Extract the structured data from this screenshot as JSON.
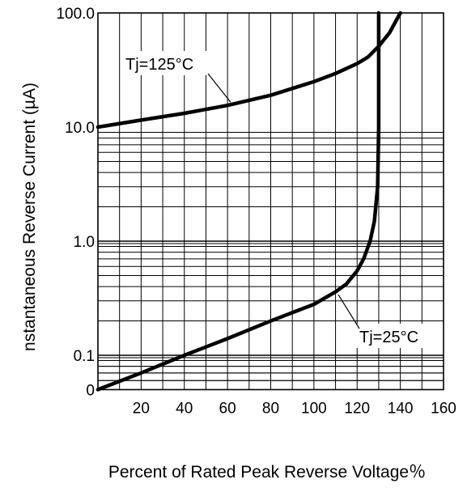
{
  "chart_data": {
    "type": "line",
    "title": "",
    "xlabel": "Percent of Rated Peak Reverse Voltage％",
    "ylabel": "nstantaneous Reverse Current (µA)",
    "xlim": [
      0,
      160
    ],
    "ylim": [
      0.05,
      100
    ],
    "y_scale": "log",
    "grid": true,
    "x_ticks": [
      "20",
      "40",
      "60",
      "80",
      "100",
      "120",
      "140",
      "160"
    ],
    "y_ticks": [
      {
        "label": "100.0",
        "value": 100
      },
      {
        "label": "10.0",
        "value": 10
      },
      {
        "label": "1.0",
        "value": 1
      },
      {
        "label": "0.1",
        "value": 0.1
      },
      {
        "label": "0",
        "value": 0.05
      }
    ],
    "series": [
      {
        "name": "Tj=125°C",
        "color": "#000000",
        "x": [
          0,
          20,
          40,
          60,
          80,
          100,
          110,
          120,
          125,
          130,
          135,
          140
        ],
        "y": [
          10.0,
          11.5,
          13.2,
          15.5,
          19.0,
          25.0,
          29.5,
          36.0,
          41.0,
          51.0,
          67.0,
          100.0
        ]
      },
      {
        "name": "Tj=25°C",
        "color": "#000000",
        "x": [
          0,
          20,
          40,
          60,
          80,
          100,
          110,
          115,
          120,
          123,
          126,
          128,
          129.5,
          130,
          130,
          130
        ],
        "y": [
          0.05,
          0.07,
          0.1,
          0.14,
          0.2,
          0.28,
          0.36,
          0.42,
          0.55,
          0.7,
          1.0,
          1.5,
          3.0,
          10.0,
          40.0,
          100.0
        ]
      }
    ],
    "annotations": [
      {
        "text": "Tj=125°C",
        "series": "Tj=125°C"
      },
      {
        "text": "Tj=25°C",
        "series": "Tj=25°C"
      }
    ]
  }
}
